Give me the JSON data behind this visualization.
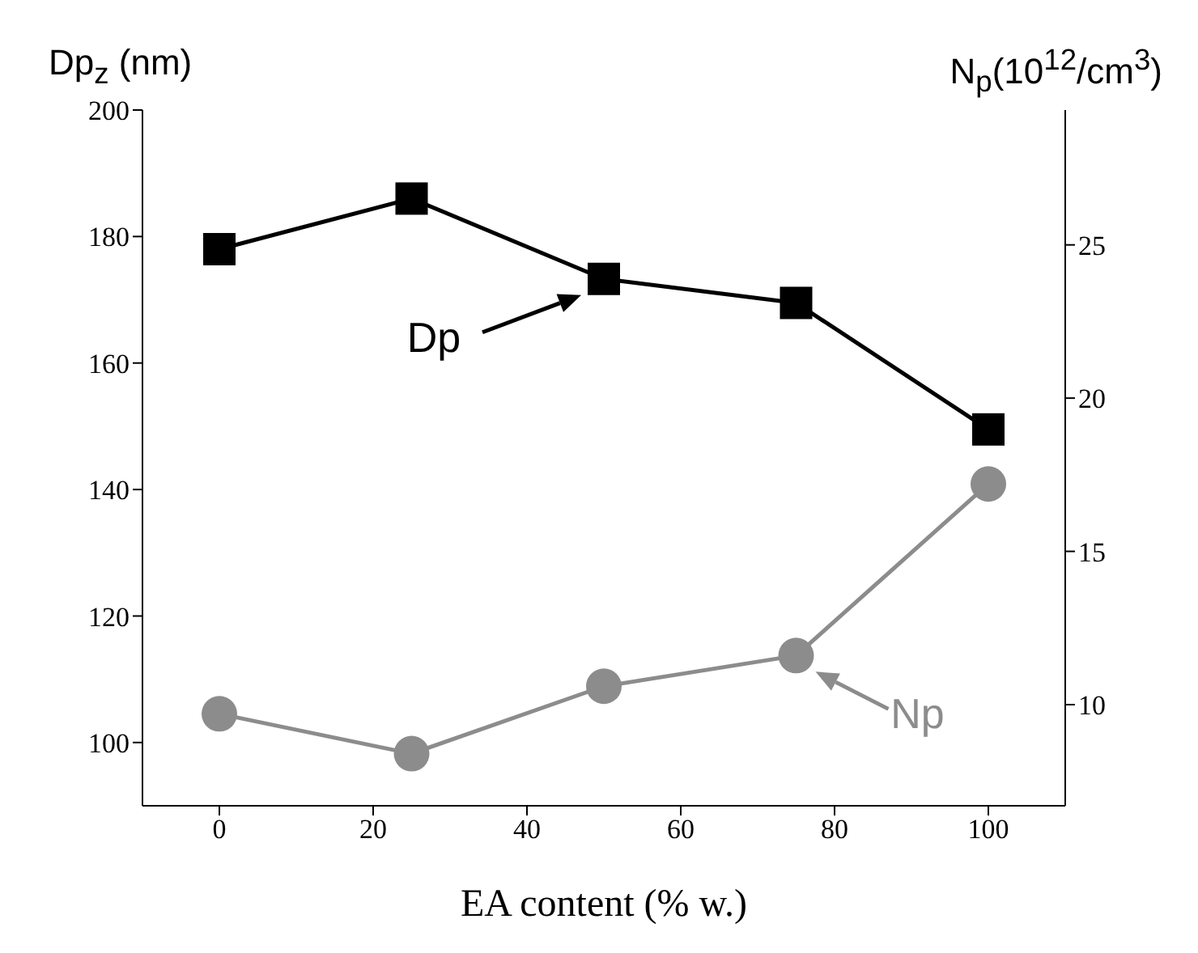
{
  "chart_data": {
    "type": "line",
    "xlabel": "EA content (% w.)",
    "ylabel": "Dp$_{z}$ (nm)",
    "y2label": "N$_{p}$(10$^{12}$/cm$^{3}$)",
    "x": [
      0,
      25,
      50,
      75,
      100
    ],
    "series": [
      {
        "name": "Dp",
        "color": "#000000",
        "marker": "square",
        "values": [
          178,
          186,
          173.3,
          169.5,
          149.5
        ]
      },
      {
        "name": "Np",
        "color": "#8c8c8c",
        "marker": "circle",
        "axis": "y2",
        "values": [
          9.7,
          8.4,
          10.6,
          11.6,
          17.2
        ]
      }
    ],
    "xlim": [
      -10,
      110
    ],
    "xticks": [
      0,
      20,
      40,
      60,
      80,
      100
    ],
    "ylim": [
      90,
      200
    ],
    "yticks": [
      100,
      120,
      140,
      160,
      180,
      200
    ],
    "y2lim": [
      6.7,
      29.4
    ],
    "y2ticks": [
      10,
      15,
      20,
      25
    ],
    "grid": false
  }
}
